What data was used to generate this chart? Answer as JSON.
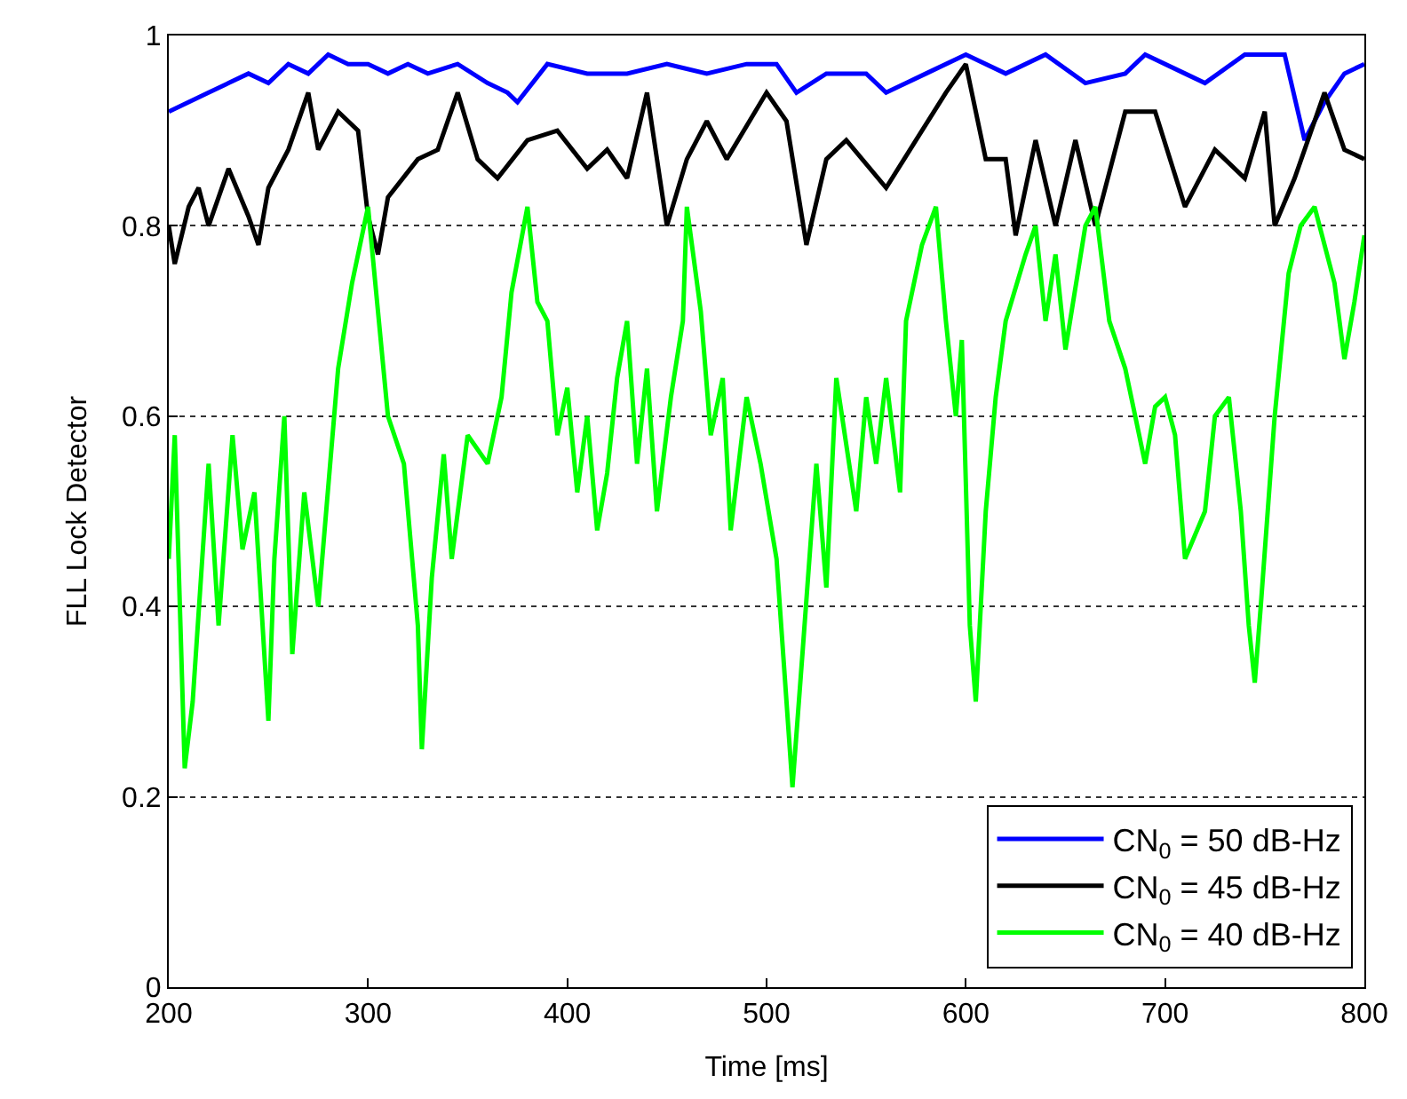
{
  "chart_data": {
    "type": "line",
    "xlabel": "Time [ms]",
    "ylabel": "FLL Lock Detector",
    "xlim": [
      200,
      800
    ],
    "ylim": [
      0,
      1
    ],
    "xticks": [
      200,
      300,
      400,
      500,
      600,
      700,
      800
    ],
    "yticks": [
      0,
      0.2,
      0.4,
      0.6,
      0.8,
      1
    ],
    "grid": "y",
    "legend": "bottom right",
    "line_style": "solid",
    "marker": "none",
    "series": [
      {
        "name": "CN$_{0}$ = 50 dB-Hz",
        "color": "#0000ff",
        "x": [
          200,
          210,
          220,
          230,
          240,
          250,
          260,
          270,
          280,
          290,
          300,
          310,
          320,
          330,
          345,
          360,
          370,
          375,
          390,
          410,
          430,
          450,
          470,
          490,
          505,
          515,
          530,
          550,
          560,
          580,
          600,
          620,
          640,
          660,
          680,
          690,
          710,
          720,
          740,
          760,
          770,
          780,
          790,
          800
        ],
        "values": [
          0.92,
          0.93,
          0.94,
          0.95,
          0.96,
          0.95,
          0.97,
          0.96,
          0.98,
          0.97,
          0.97,
          0.96,
          0.97,
          0.96,
          0.97,
          0.95,
          0.94,
          0.93,
          0.97,
          0.96,
          0.96,
          0.97,
          0.96,
          0.97,
          0.97,
          0.94,
          0.96,
          0.96,
          0.94,
          0.96,
          0.98,
          0.96,
          0.98,
          0.95,
          0.96,
          0.98,
          0.96,
          0.95,
          0.98,
          0.98,
          0.89,
          0.93,
          0.96,
          0.97
        ]
      },
      {
        "name": "CN$_{0}$ = 45 dB-Hz",
        "color": "#000000",
        "x": [
          200,
          203,
          210,
          215,
          220,
          230,
          240,
          245,
          250,
          260,
          270,
          275,
          285,
          295,
          300,
          305,
          310,
          325,
          335,
          345,
          355,
          365,
          380,
          395,
          410,
          420,
          430,
          440,
          450,
          460,
          470,
          480,
          500,
          510,
          520,
          530,
          540,
          560,
          575,
          590,
          600,
          610,
          620,
          625,
          635,
          645,
          655,
          665,
          680,
          695,
          710,
          725,
          740,
          750,
          755,
          765,
          780,
          790,
          800
        ],
        "values": [
          0.8,
          0.76,
          0.82,
          0.84,
          0.8,
          0.86,
          0.81,
          0.78,
          0.84,
          0.88,
          0.94,
          0.88,
          0.92,
          0.9,
          0.81,
          0.77,
          0.83,
          0.87,
          0.88,
          0.94,
          0.87,
          0.85,
          0.89,
          0.9,
          0.86,
          0.88,
          0.85,
          0.94,
          0.8,
          0.87,
          0.91,
          0.87,
          0.94,
          0.91,
          0.78,
          0.87,
          0.89,
          0.84,
          0.89,
          0.94,
          0.97,
          0.87,
          0.87,
          0.79,
          0.89,
          0.8,
          0.89,
          0.8,
          0.92,
          0.92,
          0.82,
          0.88,
          0.85,
          0.92,
          0.8,
          0.85,
          0.94,
          0.88,
          0.87
        ]
      },
      {
        "name": "CN$_{0}$ = 40 dB-Hz",
        "color": "#00ff00",
        "x": [
          200,
          203,
          208,
          212,
          220,
          225,
          232,
          237,
          243,
          250,
          253,
          258,
          262,
          268,
          275,
          285,
          292,
          300,
          305,
          310,
          318,
          325,
          327,
          332,
          338,
          342,
          350,
          360,
          367,
          372,
          380,
          385,
          390,
          395,
          400,
          405,
          410,
          415,
          420,
          425,
          430,
          435,
          440,
          445,
          452,
          458,
          460,
          467,
          472,
          478,
          482,
          490,
          497,
          505,
          510,
          513,
          518,
          525,
          530,
          535,
          540,
          545,
          550,
          555,
          560,
          567,
          570,
          578,
          585,
          590,
          595,
          598,
          602,
          605,
          610,
          615,
          620,
          630,
          635,
          640,
          645,
          650,
          660,
          665,
          672,
          680,
          685,
          690,
          695,
          700,
          705,
          710,
          720,
          725,
          732,
          738,
          742,
          745,
          748,
          755,
          762,
          768,
          775,
          785,
          790,
          795,
          800
        ],
        "values": [
          0.45,
          0.58,
          0.23,
          0.3,
          0.55,
          0.38,
          0.58,
          0.46,
          0.52,
          0.28,
          0.45,
          0.6,
          0.35,
          0.52,
          0.4,
          0.65,
          0.74,
          0.82,
          0.71,
          0.6,
          0.55,
          0.38,
          0.25,
          0.43,
          0.56,
          0.45,
          0.58,
          0.55,
          0.62,
          0.73,
          0.82,
          0.72,
          0.7,
          0.58,
          0.63,
          0.52,
          0.6,
          0.48,
          0.54,
          0.64,
          0.7,
          0.55,
          0.65,
          0.5,
          0.62,
          0.7,
          0.82,
          0.71,
          0.58,
          0.64,
          0.48,
          0.62,
          0.55,
          0.45,
          0.3,
          0.21,
          0.35,
          0.55,
          0.42,
          0.64,
          0.57,
          0.5,
          0.62,
          0.55,
          0.64,
          0.52,
          0.7,
          0.78,
          0.82,
          0.7,
          0.6,
          0.68,
          0.38,
          0.3,
          0.5,
          0.62,
          0.7,
          0.77,
          0.8,
          0.7,
          0.77,
          0.67,
          0.8,
          0.82,
          0.7,
          0.65,
          0.6,
          0.55,
          0.61,
          0.62,
          0.58,
          0.45,
          0.5,
          0.6,
          0.62,
          0.5,
          0.38,
          0.32,
          0.4,
          0.6,
          0.75,
          0.8,
          0.82,
          0.74,
          0.66,
          0.72,
          0.79
        ]
      }
    ]
  }
}
